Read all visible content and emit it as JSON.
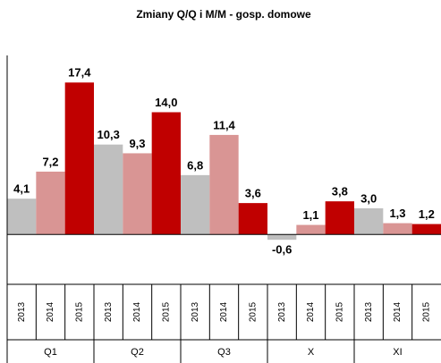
{
  "chart_data": {
    "type": "bar",
    "title": "Zmiany Q/Q i M/M - gosp. domowe",
    "categories": [
      "Q1",
      "Q2",
      "Q3",
      "X",
      "XI"
    ],
    "series": [
      {
        "name": "2013",
        "color": "#bfbfbf",
        "values": [
          4.1,
          10.3,
          6.8,
          -0.6,
          3.0
        ],
        "value_labels": [
          "4,1",
          "10,3",
          "6,8",
          "-0,6",
          "3,0"
        ]
      },
      {
        "name": "2014",
        "color": "#d99594",
        "values": [
          7.2,
          9.3,
          11.4,
          1.1,
          1.3
        ],
        "value_labels": [
          "7,2",
          "9,3",
          "11,4",
          "1,1",
          "1,3"
        ]
      },
      {
        "name": "2015",
        "color": "#c00000",
        "values": [
          17.4,
          14.0,
          3.6,
          3.8,
          1.2
        ],
        "value_labels": [
          "17,4",
          "14,0",
          "3,6",
          "3,8",
          "1,2"
        ]
      }
    ],
    "ylim": [
      -5.7,
      20.5
    ]
  }
}
